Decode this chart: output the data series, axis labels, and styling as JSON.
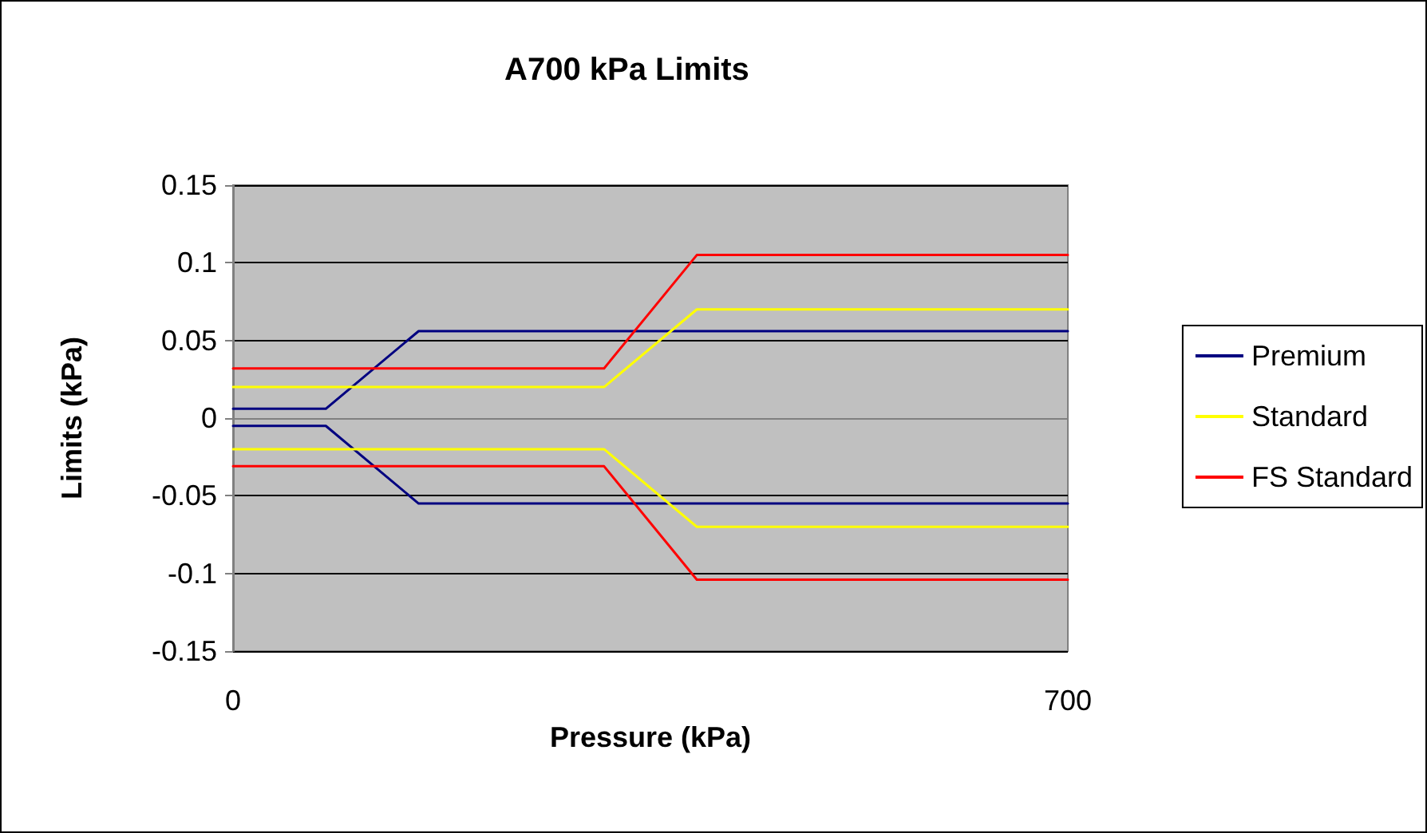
{
  "chart_data": {
    "type": "line",
    "title": "A700 kPa Limits",
    "xlabel": "Pressure (kPa)",
    "ylabel": "Limits (kPa)",
    "xlim": [
      0,
      700
    ],
    "xticks": [
      0,
      700
    ],
    "ylim": [
      -0.15,
      0.15
    ],
    "yticks": [
      -0.15,
      -0.1,
      -0.05,
      0,
      0.05,
      0.1,
      0.15
    ],
    "grid": "y",
    "legend": "right",
    "marker": "none",
    "line_style": "solid",
    "x": [
      0,
      77.8,
      155.6,
      233.3,
      311.1,
      388.9,
      466.7,
      544.4,
      622.2,
      700
    ],
    "series": [
      {
        "name": "Premium",
        "color": "#000080",
        "values": [
          0.006,
          0.006,
          0.056,
          0.056,
          0.056,
          0.056,
          0.056,
          0.056,
          0.056,
          0.056
        ]
      },
      {
        "color": "#000080",
        "values": [
          -0.005,
          -0.005,
          -0.055,
          -0.055,
          -0.055,
          -0.055,
          -0.055,
          -0.055,
          -0.055,
          -0.055
        ]
      },
      {
        "name": "Standard",
        "color": "#ffff00",
        "values": [
          0.02,
          0.02,
          0.02,
          0.02,
          0.02,
          0.07,
          0.07,
          0.07,
          0.07,
          0.07
        ]
      },
      {
        "color": "#ffff00",
        "values": [
          -0.02,
          -0.02,
          -0.02,
          -0.02,
          -0.02,
          -0.07,
          -0.07,
          -0.07,
          -0.07,
          -0.07
        ]
      },
      {
        "name": "FS Standard",
        "color": "#ff0000",
        "values": [
          0.032,
          0.032,
          0.032,
          0.032,
          0.032,
          0.105,
          0.105,
          0.105,
          0.105,
          0.105
        ]
      },
      {
        "color": "#ff0000",
        "values": [
          -0.031,
          -0.031,
          -0.031,
          -0.031,
          -0.031,
          -0.104,
          -0.104,
          -0.104,
          -0.104,
          -0.104
        ]
      }
    ]
  }
}
